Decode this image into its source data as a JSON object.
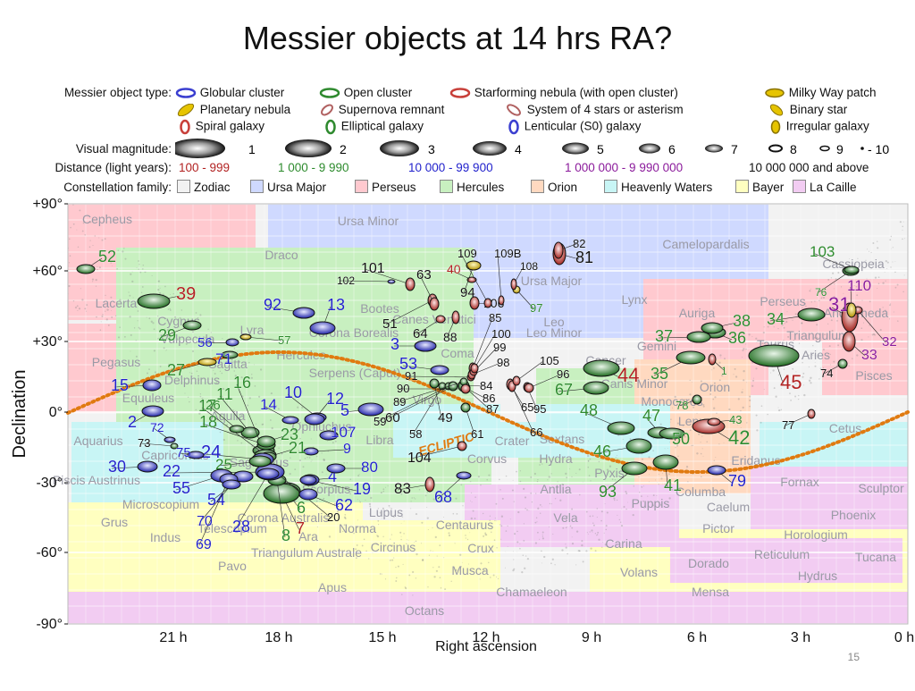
{
  "slide": {
    "title": "Messier objects at 14 hrs RA?",
    "page_number": "15"
  },
  "legend": {
    "type_label": "Messier object type:",
    "types": [
      {
        "name": "Globular cluster",
        "icon": "globular-icon",
        "color": "#3b3fd0"
      },
      {
        "name": "Open cluster",
        "icon": "open-cluster-icon",
        "color": "#2f8a2f"
      },
      {
        "name": "Starforming nebula (with open cluster)",
        "icon": "starforming-icon",
        "color": "#c8403a"
      },
      {
        "name": "Milky Way patch",
        "icon": "milky-way-icon",
        "color": "#e6c400"
      },
      {
        "name": "Planetary nebula",
        "icon": "planetary-icon",
        "color": "#e6c400"
      },
      {
        "name": "Supernova remnant",
        "icon": "supernova-icon",
        "color": "#b06060"
      },
      {
        "name": "System of 4 stars or asterism",
        "icon": "asterism-icon",
        "color": "#b06060"
      },
      {
        "name": "Binary star",
        "icon": "binary-icon",
        "color": "#e6c400"
      },
      {
        "name": "Spiral galaxy",
        "icon": "spiral-icon",
        "color": "#c8403a"
      },
      {
        "name": "Elliptical galaxy",
        "icon": "elliptical-icon",
        "color": "#2f8a2f"
      },
      {
        "name": "Lenticular (S0) galaxy",
        "icon": "lenticular-icon",
        "color": "#3b3fd0"
      },
      {
        "name": "Irregular galaxy",
        "icon": "irregular-icon",
        "color": "#e6c400"
      }
    ],
    "magnitude_label": "Visual magnitude:",
    "magnitudes": [
      "1",
      "2",
      "3",
      "4",
      "5",
      "6",
      "7",
      "8",
      "9",
      "- 10"
    ],
    "distance_label": "Distance (light years):",
    "distances": [
      {
        "text": "100 - 999",
        "color": "#b22222"
      },
      {
        "text": "1 000 - 9 990",
        "color": "#2e8b2e"
      },
      {
        "text": "10 000 - 99 900",
        "color": "#2222cc"
      },
      {
        "text": "1 000 000 - 9 990 000",
        "color": "#8b1a9b"
      },
      {
        "text": "10 000 000 and above",
        "color": "#111111"
      }
    ],
    "family_label": "Constellation family:",
    "families": [
      {
        "name": "Zodiac",
        "color": "#f2f2f2"
      },
      {
        "name": "Ursa Major",
        "color": "#cfd9ff"
      },
      {
        "name": "Perseus",
        "color": "#ffc9cf"
      },
      {
        "name": "Hercules",
        "color": "#c8f0c0"
      },
      {
        "name": "Orion",
        "color": "#ffd9c0"
      },
      {
        "name": "Heavenly Waters",
        "color": "#c8f5f5"
      },
      {
        "name": "Bayer",
        "color": "#ffffc0"
      },
      {
        "name": "La Caille",
        "color": "#f2ccf2"
      }
    ]
  },
  "map": {
    "y_axis_label": "Declination",
    "x_axis_label": "Right ascension",
    "dec_ticks": [
      "+90°",
      "+60°",
      "+30°",
      "0°",
      "-30°",
      "-60°",
      "-90°"
    ],
    "ra_ticks": [
      "21 h",
      "18 h",
      "15 h",
      "12 h",
      "9 h",
      "6 h",
      "3 h",
      "0 h"
    ],
    "ecliptic_label": "ECLIPTIC",
    "constellations": [
      "Cepheus",
      "Draco",
      "Ursa Minor",
      "Camelopardalis",
      "Cassiopeia",
      "Lacerta",
      "Cygnus",
      "Lyra",
      "Bootes",
      "Corona Borealis",
      "Hercules",
      "Canes Venatici",
      "Coma",
      "Ursa Major",
      "Lynx",
      "Leo Minor",
      "Auriga",
      "Perseus",
      "Andromeda",
      "Triangulum",
      "Aries",
      "Pisces",
      "Cetus",
      "Pegasus",
      "Vulpecula",
      "Sagitta",
      "Delphinus",
      "Equuleus",
      "Aquila",
      "Serpens (Caput)",
      "Virgo",
      "Leo",
      "Cancer",
      "Gemini",
      "Taurus",
      "Orion",
      "Monoceros",
      "Canis Minor",
      "Lepus",
      "Eridanus",
      "Fornax",
      "Sculptor",
      "Phoenix",
      "Horologium",
      "Reticulum",
      "Tucana",
      "Hydrus",
      "Mensa",
      "Dorado",
      "Pictor",
      "Caelum",
      "Columba",
      "Puppis",
      "Pyxis",
      "Hydra",
      "Antlia",
      "Vela",
      "Carina",
      "Volans",
      "Chamaeleon",
      "Musca",
      "Crux",
      "Centaurus",
      "Circinus",
      "Norma",
      "Lupus",
      "Libra",
      "Scorpius",
      "Ophiuchus",
      "Sagittarius",
      "Corona Australis",
      "Telescopium",
      "Indus",
      "Grus",
      "Piscis Austrinus",
      "Microscopium",
      "Capricornus",
      "Aquarius",
      "Pavo",
      "Apus",
      "Triangulum Australe",
      "Ara",
      "Octans",
      "Crater",
      "Corvus",
      "Sextans"
    ],
    "objects": [
      {
        "id": "1",
        "color": "#2e8b2e"
      },
      {
        "id": "2",
        "color": "#2222cc"
      },
      {
        "id": "3",
        "color": "#2222cc"
      },
      {
        "id": "4",
        "color": "#2222cc"
      },
      {
        "id": "5",
        "color": "#2222cc"
      },
      {
        "id": "6",
        "color": "#2e8b2e"
      },
      {
        "id": "7",
        "color": "#b22222"
      },
      {
        "id": "8",
        "color": "#2e8b2e"
      },
      {
        "id": "9",
        "color": "#2222cc"
      },
      {
        "id": "10",
        "color": "#2222cc"
      },
      {
        "id": "11",
        "color": "#2e8b2e"
      },
      {
        "id": "12",
        "color": "#2222cc"
      },
      {
        "id": "13",
        "color": "#2222cc"
      },
      {
        "id": "14",
        "color": "#2222cc"
      },
      {
        "id": "15",
        "color": "#2222cc"
      },
      {
        "id": "16",
        "color": "#2e8b2e"
      },
      {
        "id": "17",
        "color": "#2e8b2e"
      },
      {
        "id": "18",
        "color": "#2e8b2e"
      },
      {
        "id": "19",
        "color": "#2222cc"
      },
      {
        "id": "20",
        "color": "#111111"
      },
      {
        "id": "21",
        "color": "#2e8b2e"
      },
      {
        "id": "22",
        "color": "#2222cc"
      },
      {
        "id": "23",
        "color": "#2e8b2e"
      },
      {
        "id": "24",
        "color": "#2222cc"
      },
      {
        "id": "25",
        "color": "#2e8b2e"
      },
      {
        "id": "26",
        "color": "#2e8b2e"
      },
      {
        "id": "27",
        "color": "#2e8b2e"
      },
      {
        "id": "28",
        "color": "#2222cc"
      },
      {
        "id": "29",
        "color": "#2e8b2e"
      },
      {
        "id": "30",
        "color": "#2222cc"
      },
      {
        "id": "31",
        "color": "#8b1a9b"
      },
      {
        "id": "32",
        "color": "#8b1a9b"
      },
      {
        "id": "33",
        "color": "#8b1a9b"
      },
      {
        "id": "34",
        "color": "#2e8b2e"
      },
      {
        "id": "35",
        "color": "#2e8b2e"
      },
      {
        "id": "36",
        "color": "#2e8b2e"
      },
      {
        "id": "37",
        "color": "#2e8b2e"
      },
      {
        "id": "38",
        "color": "#2e8b2e"
      },
      {
        "id": "39",
        "color": "#b22222"
      },
      {
        "id": "40",
        "color": "#b22222"
      },
      {
        "id": "41",
        "color": "#2e8b2e"
      },
      {
        "id": "42",
        "color": "#2e8b2e"
      },
      {
        "id": "43",
        "color": "#2e8b2e"
      },
      {
        "id": "44",
        "color": "#b22222"
      },
      {
        "id": "45",
        "color": "#b22222"
      },
      {
        "id": "46",
        "color": "#2e8b2e"
      },
      {
        "id": "47",
        "color": "#2e8b2e"
      },
      {
        "id": "48",
        "color": "#2e8b2e"
      },
      {
        "id": "49",
        "color": "#111111"
      },
      {
        "id": "50",
        "color": "#2e8b2e"
      },
      {
        "id": "51",
        "color": "#111111"
      },
      {
        "id": "52",
        "color": "#2e8b2e"
      },
      {
        "id": "53",
        "color": "#2222cc"
      },
      {
        "id": "54",
        "color": "#2222cc"
      },
      {
        "id": "55",
        "color": "#2222cc"
      },
      {
        "id": "56",
        "color": "#2222cc"
      },
      {
        "id": "57",
        "color": "#2e8b2e"
      },
      {
        "id": "58",
        "color": "#111111"
      },
      {
        "id": "59",
        "color": "#111111"
      },
      {
        "id": "60",
        "color": "#111111"
      },
      {
        "id": "61",
        "color": "#111111"
      },
      {
        "id": "62",
        "color": "#2222cc"
      },
      {
        "id": "63",
        "color": "#111111"
      },
      {
        "id": "64",
        "color": "#111111"
      },
      {
        "id": "65",
        "color": "#111111"
      },
      {
        "id": "66",
        "color": "#111111"
      },
      {
        "id": "67",
        "color": "#2e8b2e"
      },
      {
        "id": "68",
        "color": "#2222cc"
      },
      {
        "id": "69",
        "color": "#2222cc"
      },
      {
        "id": "70",
        "color": "#2222cc"
      },
      {
        "id": "71",
        "color": "#2222cc"
      },
      {
        "id": "72",
        "color": "#2222cc"
      },
      {
        "id": "73",
        "color": "#111111"
      },
      {
        "id": "74",
        "color": "#111111"
      },
      {
        "id": "75",
        "color": "#2222cc"
      },
      {
        "id": "76",
        "color": "#2e8b2e"
      },
      {
        "id": "77",
        "color": "#111111"
      },
      {
        "id": "78",
        "color": "#2e8b2e"
      },
      {
        "id": "79",
        "color": "#2222cc"
      },
      {
        "id": "80",
        "color": "#2222cc"
      },
      {
        "id": "81",
        "color": "#111111"
      },
      {
        "id": "82",
        "color": "#111111"
      },
      {
        "id": "83",
        "color": "#111111"
      },
      {
        "id": "84",
        "color": "#111111"
      },
      {
        "id": "85",
        "color": "#111111"
      },
      {
        "id": "86",
        "color": "#111111"
      },
      {
        "id": "87",
        "color": "#111111"
      },
      {
        "id": "88",
        "color": "#111111"
      },
      {
        "id": "89",
        "color": "#111111"
      },
      {
        "id": "90",
        "color": "#111111"
      },
      {
        "id": "91",
        "color": "#111111"
      },
      {
        "id": "92",
        "color": "#2222cc"
      },
      {
        "id": "93",
        "color": "#2e8b2e"
      },
      {
        "id": "94",
        "color": "#111111"
      },
      {
        "id": "95",
        "color": "#111111"
      },
      {
        "id": "96",
        "color": "#111111"
      },
      {
        "id": "97",
        "color": "#2e8b2e"
      },
      {
        "id": "98",
        "color": "#111111"
      },
      {
        "id": "99",
        "color": "#111111"
      },
      {
        "id": "100",
        "color": "#111111"
      },
      {
        "id": "101",
        "color": "#111111"
      },
      {
        "id": "102",
        "color": "#111111"
      },
      {
        "id": "103",
        "color": "#2e8b2e"
      },
      {
        "id": "104",
        "color": "#111111"
      },
      {
        "id": "105",
        "color": "#111111"
      },
      {
        "id": "106",
        "color": "#111111"
      },
      {
        "id": "107",
        "color": "#2222cc"
      },
      {
        "id": "108",
        "color": "#111111"
      },
      {
        "id": "109",
        "color": "#111111"
      },
      {
        "id": "109B",
        "color": "#111111"
      },
      {
        "id": "110",
        "color": "#8b1a9b"
      }
    ]
  }
}
